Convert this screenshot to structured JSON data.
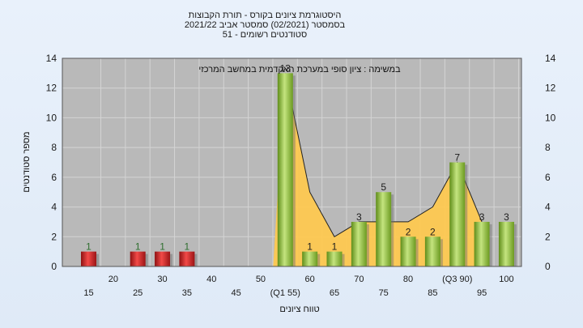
{
  "chart_data": {
    "type": "bar",
    "title_lines": [
      "היסטוגרמת ציונים בקורס - תורת הקבוצות",
      "בסמסטר  (02/2021)  סמסטר אביב 2021/22",
      "סטודנטים רשומים - 51"
    ],
    "annotation": "במשימה : ציון סופי במערכת האקדמית במחשב המרכזי",
    "xlabel": "טווח ציונים",
    "ylabel": "מספר סטודנטים",
    "ylim": [
      0,
      14
    ],
    "yticks": [
      0,
      2,
      4,
      6,
      8,
      10,
      12,
      14
    ],
    "grid": true,
    "x": [
      15,
      25,
      30,
      35,
      55,
      60,
      65,
      70,
      75,
      80,
      85,
      90,
      95,
      100
    ],
    "values": [
      1,
      1,
      1,
      1,
      13,
      1,
      1,
      3,
      5,
      2,
      2,
      7,
      3,
      3
    ],
    "bar_colors": [
      "red",
      "red",
      "red",
      "red",
      "green",
      "green",
      "green",
      "green",
      "green",
      "green",
      "green",
      "green",
      "green",
      "green"
    ],
    "xtick_labels": [
      {
        "x": 15,
        "label": "15"
      },
      {
        "x": 20,
        "label": "20"
      },
      {
        "x": 25,
        "label": "25"
      },
      {
        "x": 30,
        "label": "30"
      },
      {
        "x": 35,
        "label": "35"
      },
      {
        "x": 40,
        "label": "40"
      },
      {
        "x": 45,
        "label": "45"
      },
      {
        "x": 50,
        "label": "50"
      },
      {
        "x": 55,
        "label": "(Q1 55)"
      },
      {
        "x": 60,
        "label": "60"
      },
      {
        "x": 65,
        "label": "65"
      },
      {
        "x": 70,
        "label": "70"
      },
      {
        "x": 75,
        "label": "75"
      },
      {
        "x": 80,
        "label": "80"
      },
      {
        "x": 85,
        "label": "85"
      },
      {
        "x": 90,
        "label": "(Q3 90)"
      },
      {
        "x": 95,
        "label": "95"
      },
      {
        "x": 100,
        "label": "100"
      }
    ],
    "area_shape": {
      "x": [
        55,
        60,
        65,
        70,
        75,
        80,
        85,
        90,
        95
      ],
      "values": [
        13,
        5,
        2,
        3,
        3,
        3,
        4,
        7,
        3
      ]
    },
    "colors": {
      "fail": "#d9262a",
      "pass": "#8dbf3a",
      "area": "#ffc94d",
      "plot_bg": "#b9b9b9"
    }
  }
}
